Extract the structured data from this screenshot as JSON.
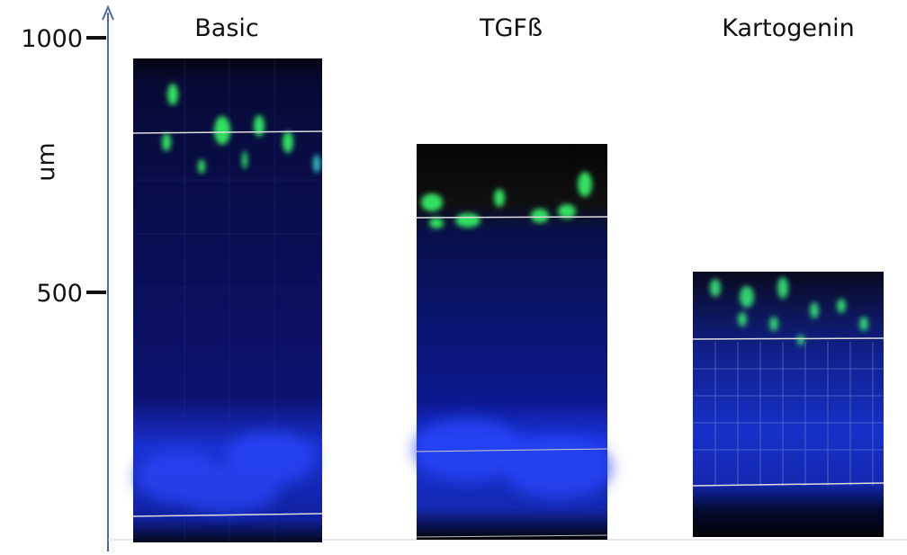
{
  "axis": {
    "label": "um",
    "ticks": [
      1000,
      500
    ]
  },
  "panels": [
    {
      "title": "Basic"
    },
    {
      "title": "TGFß"
    },
    {
      "title": "Kartogenin"
    }
  ]
}
